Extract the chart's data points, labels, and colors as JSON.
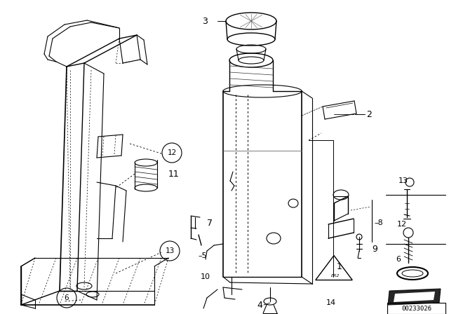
{
  "bg_color": "#ffffff",
  "diagram_code": "00233026",
  "lw_main": 1.0,
  "lw_thin": 0.6,
  "lw_dot": 0.5,
  "font_label": 8,
  "font_circle": 7.5
}
